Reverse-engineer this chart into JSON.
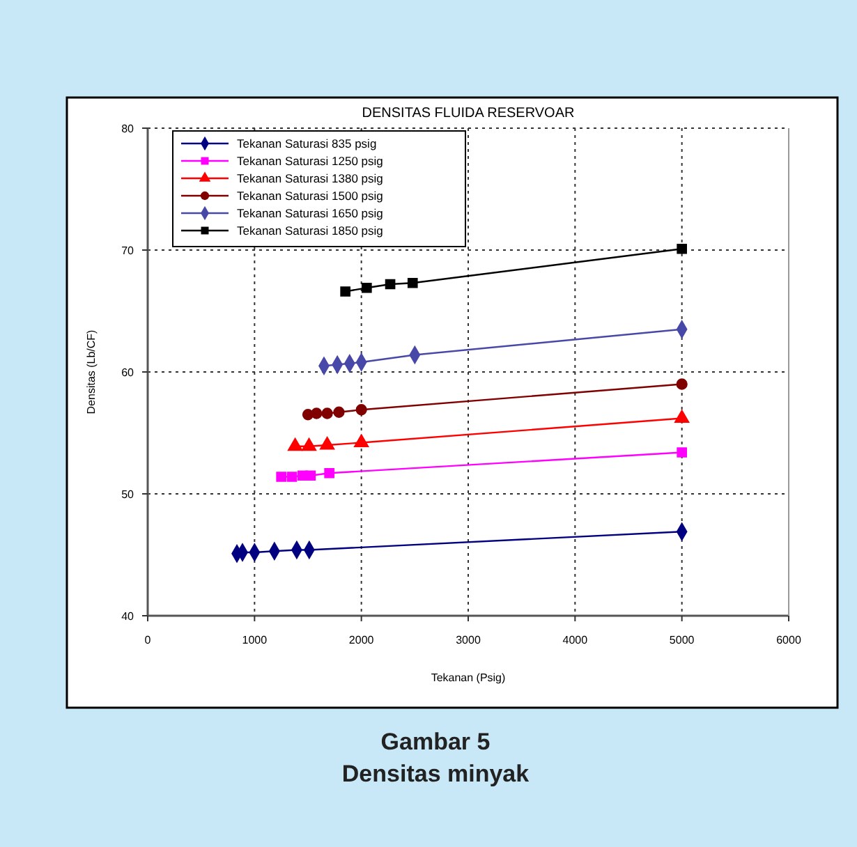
{
  "chart_data": {
    "type": "line",
    "title": "DENSITAS FLUIDA RESERVOAR",
    "xlabel": "Tekanan (Psig)",
    "ylabel": "Densitas (Lb/CF)",
    "xlim": [
      0,
      6000
    ],
    "xticks": [
      0,
      1000,
      2000,
      3000,
      4000,
      5000,
      6000
    ],
    "ylim": [
      40,
      80
    ],
    "yticks": [
      40,
      50,
      60,
      70,
      80
    ],
    "grid": true,
    "legend": "top left",
    "line_style": "solid",
    "series": [
      {
        "name": "Tekanan Saturasi 835 psig",
        "color": "#000080",
        "marker": "diamond",
        "x": [
          835,
          887,
          1000,
          1186,
          1395,
          1512,
          5000
        ],
        "values": [
          45.1,
          45.2,
          45.2,
          45.3,
          45.4,
          45.4,
          46.9
        ]
      },
      {
        "name": "Tekanan Saturasi 1250 psig",
        "color": "#ff00ff",
        "marker": "square",
        "x": [
          1250,
          1350,
          1450,
          1525,
          1700,
          5000
        ],
        "values": [
          51.4,
          51.4,
          51.5,
          51.5,
          51.7,
          53.4
        ]
      },
      {
        "name": "Tekanan Saturasi 1380 psig",
        "color": "#ff0000",
        "marker": "triangle",
        "x": [
          1380,
          1510,
          1680,
          2000,
          5000
        ],
        "values": [
          53.9,
          53.9,
          54.0,
          54.2,
          56.2
        ]
      },
      {
        "name": "Tekanan Saturasi 1500 psig",
        "color": "#800000",
        "marker": "circle",
        "x": [
          1500,
          1580,
          1680,
          1790,
          2000,
          5000
        ],
        "values": [
          56.5,
          56.6,
          56.6,
          56.7,
          56.9,
          59.0
        ]
      },
      {
        "name": "Tekanan Saturasi 1650 psig",
        "color": "#4848a8",
        "marker": "diamond",
        "x": [
          1650,
          1775,
          1890,
          2000,
          2500,
          5000
        ],
        "values": [
          60.5,
          60.6,
          60.7,
          60.8,
          61.4,
          63.5
        ]
      },
      {
        "name": "Tekanan Saturasi 1850 psig",
        "color": "#000000",
        "marker": "square",
        "x": [
          1850,
          2050,
          2270,
          2480,
          5000
        ],
        "values": [
          66.6,
          66.9,
          67.2,
          67.3,
          70.1
        ]
      }
    ],
    "annotations": [
      "Gambar 5",
      "Densitas minyak"
    ]
  }
}
